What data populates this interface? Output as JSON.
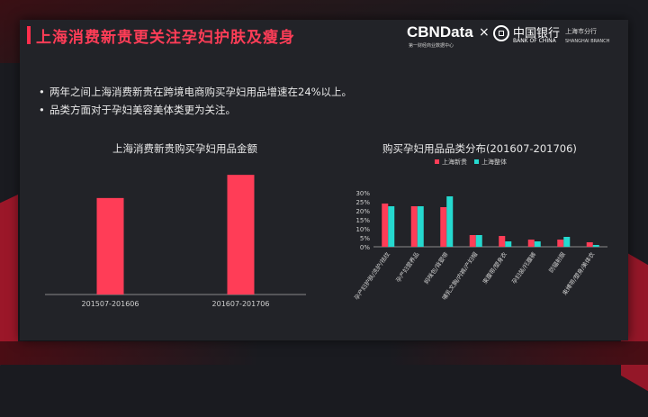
{
  "page": {
    "title": "上海消费新贵更关注孕妇护肤及瘦身",
    "bullets": [
      "两年之间上海消费新贵在跨境电商购买孕妇用品增速在24%以上。",
      "品类方面对于孕妇美容美体类更为关注。"
    ]
  },
  "logos": {
    "cbn_text": "CBNData",
    "cbn_sub": "第一财经商业数据中心",
    "times": "×",
    "boc_cn": "中国银行",
    "boc_en": "BANK OF CHINA",
    "boc_branch_cn": "上海市分行",
    "boc_branch_en": "SHANGHAI BRANCH"
  },
  "colors": {
    "accent": "#ff3d57",
    "series_a": "#ff3d57",
    "series_b": "#25d9cf"
  },
  "chart_data": [
    {
      "type": "bar",
      "title": "上海消费新贵购买孕妇用品金额",
      "categories": [
        "201507-201606",
        "201607-201706"
      ],
      "values": [
        100,
        124
      ],
      "ylim": [
        0,
        140
      ],
      "grid": false,
      "axis_labels_shown": false
    },
    {
      "type": "bar",
      "title": "购买孕妇用品品类分布(201607-201706)",
      "categories": [
        "孕产妇护肤/洗护/祛纹",
        "孕产妇营养品",
        "妈咪包/背婴带",
        "哺乳文胸/内裤/产妇帽",
        "束腹带/塑身衣",
        "孕妇装/托腹裤",
        "防辐射服",
        "束缚带/塑身/美体衣"
      ],
      "series": [
        {
          "name": "上海新贵",
          "values": [
            24,
            22.5,
            22,
            6.5,
            6,
            4,
            4,
            2.5
          ]
        },
        {
          "name": "上海整体",
          "values": [
            22.5,
            22.5,
            28,
            6.5,
            3,
            3,
            5.5,
            1
          ]
        }
      ],
      "yticks": [
        "30%",
        "25%",
        "20%",
        "15%",
        "10%",
        "5%",
        "0%"
      ],
      "ylim": [
        0,
        30
      ],
      "legend": "top-center"
    }
  ]
}
